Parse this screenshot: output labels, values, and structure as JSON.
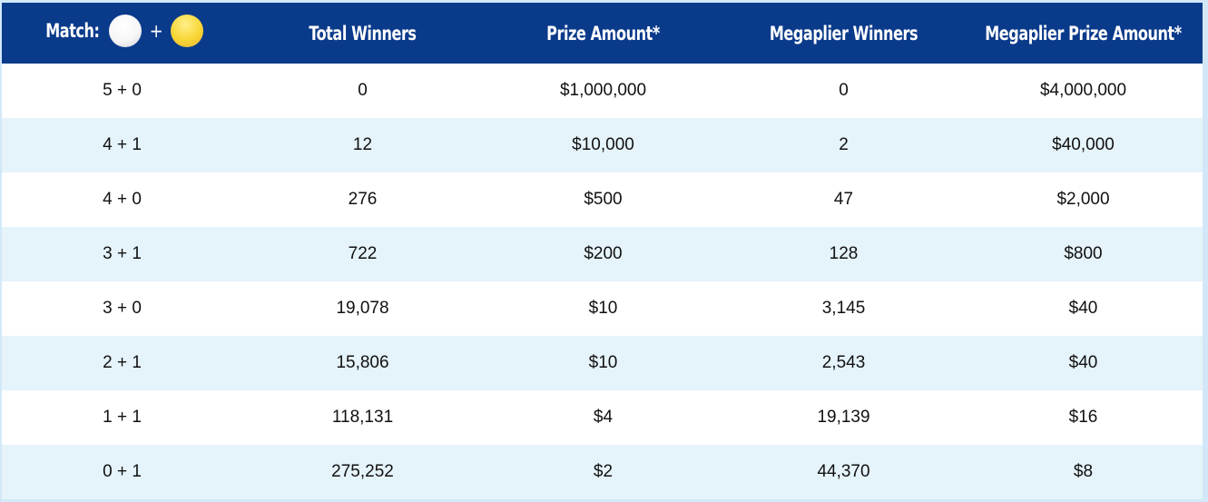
{
  "table": {
    "header": {
      "match_label": "Match:",
      "match_icons": [
        "white-ball-icon",
        "gold-megaball-icon"
      ],
      "match_plus": "+",
      "columns": [
        "Total Winners",
        "Prize Amount*",
        "Megaplier Winners",
        "Megaplier Prize Amount*"
      ]
    },
    "rows": [
      {
        "match": "5 + 0",
        "total_winners": "0",
        "prize_amount": "$1,000,000",
        "megaplier_winners": "0",
        "megaplier_prize_amount": "$4,000,000"
      },
      {
        "match": "4 + 1",
        "total_winners": "12",
        "prize_amount": "$10,000",
        "megaplier_winners": "2",
        "megaplier_prize_amount": "$40,000"
      },
      {
        "match": "4 + 0",
        "total_winners": "276",
        "prize_amount": "$500",
        "megaplier_winners": "47",
        "megaplier_prize_amount": "$2,000"
      },
      {
        "match": "3 + 1",
        "total_winners": "722",
        "prize_amount": "$200",
        "megaplier_winners": "128",
        "megaplier_prize_amount": "$800"
      },
      {
        "match": "3 + 0",
        "total_winners": "19,078",
        "prize_amount": "$10",
        "megaplier_winners": "3,145",
        "megaplier_prize_amount": "$40"
      },
      {
        "match": "2 + 1",
        "total_winners": "15,806",
        "prize_amount": "$10",
        "megaplier_winners": "2,543",
        "megaplier_prize_amount": "$40"
      },
      {
        "match": "1 + 1",
        "total_winners": "118,131",
        "prize_amount": "$4",
        "megaplier_winners": "19,139",
        "megaplier_prize_amount": "$16"
      },
      {
        "match": "0 + 1",
        "total_winners": "275,252",
        "prize_amount": "$2",
        "megaplier_winners": "44,370",
        "megaplier_prize_amount": "$8"
      }
    ]
  },
  "colors": {
    "header_bg": "#0a3a8a",
    "header_text": "#ffffff",
    "row_alt_bg": "#e5f3fa",
    "frame_bg": "#d2e8f9",
    "white_ball": "#f6f6f6",
    "yellow_ball": "#f8d534"
  }
}
